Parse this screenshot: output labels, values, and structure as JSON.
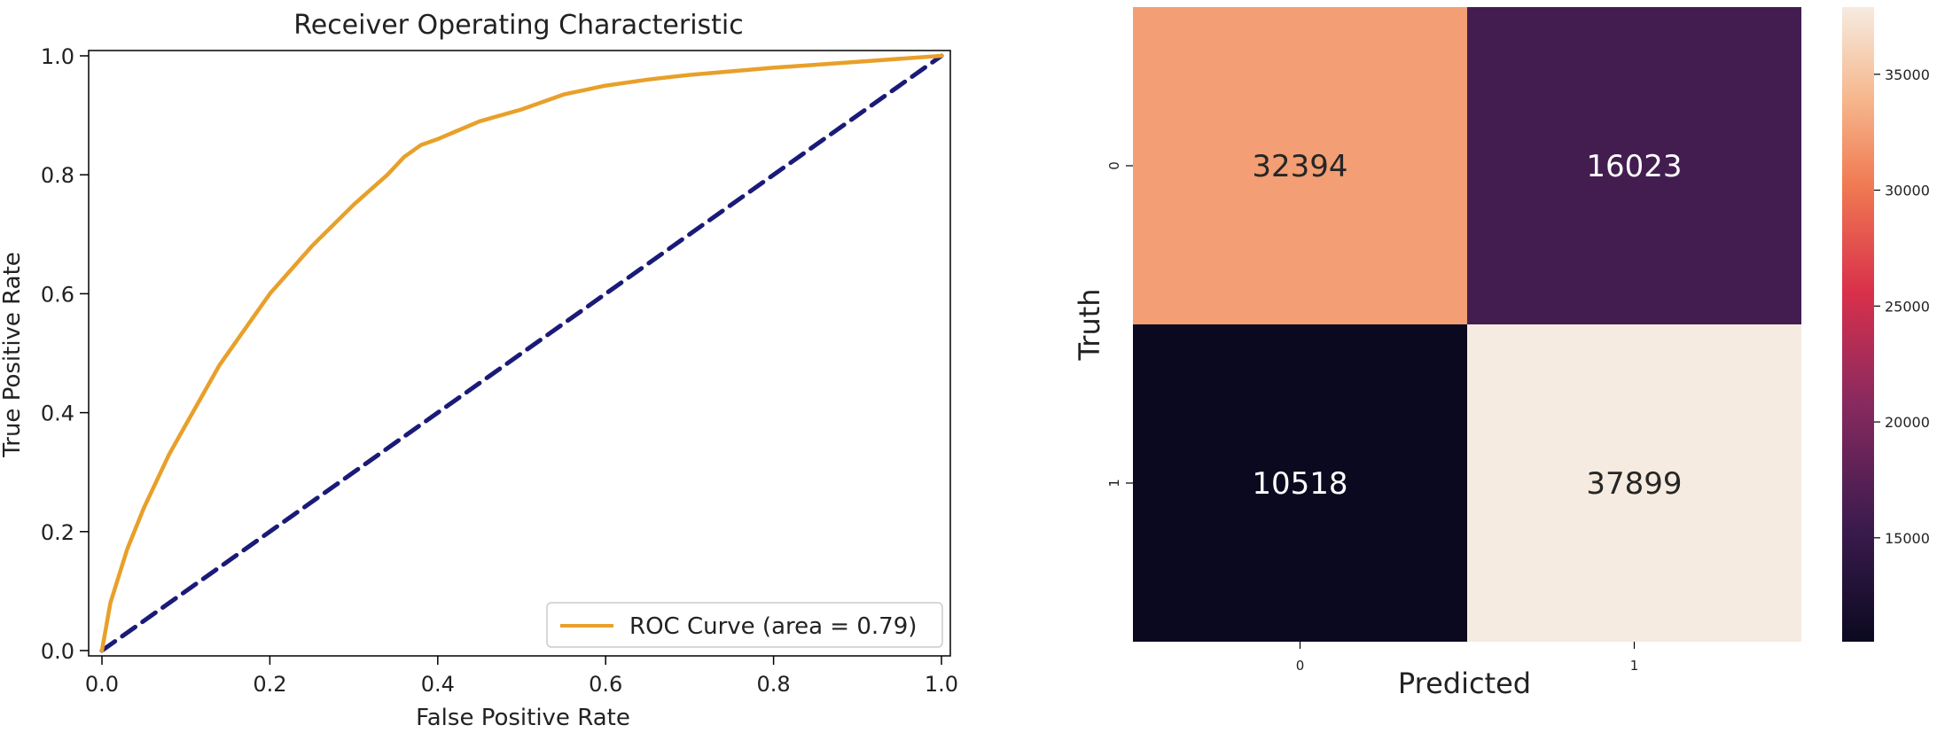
{
  "chart_data": [
    {
      "type": "line",
      "title": "Receiver Operating Characteristic",
      "xlabel": "False Positive Rate",
      "ylabel": "True Positive Rate",
      "xlim": [
        0,
        1
      ],
      "ylim": [
        0,
        1
      ],
      "xticks": [
        "0.0",
        "0.2",
        "0.4",
        "0.6",
        "0.8",
        "1.0"
      ],
      "yticks": [
        "0.0",
        "0.2",
        "0.4",
        "0.6",
        "0.8",
        "1.0"
      ],
      "grid": false,
      "legend_position": "lower-right",
      "series": [
        {
          "name": "ROC Curve (area = 0.79)",
          "color": "#e8a02a",
          "style": "solid",
          "x": [
            0,
            0.01,
            0.03,
            0.05,
            0.08,
            0.1,
            0.14,
            0.18,
            0.2,
            0.25,
            0.3,
            0.34,
            0.36,
            0.38,
            0.4,
            0.45,
            0.5,
            0.55,
            0.6,
            0.65,
            0.7,
            0.8,
            0.9,
            1.0
          ],
          "y": [
            0,
            0.08,
            0.17,
            0.24,
            0.33,
            0.38,
            0.48,
            0.56,
            0.6,
            0.68,
            0.75,
            0.8,
            0.83,
            0.85,
            0.86,
            0.89,
            0.91,
            0.935,
            0.95,
            0.96,
            0.968,
            0.98,
            0.99,
            1.0
          ]
        },
        {
          "name": "",
          "color": "#1a1a78",
          "style": "dashed",
          "x": [
            0,
            1
          ],
          "y": [
            0,
            1
          ]
        }
      ]
    },
    {
      "type": "heatmap",
      "xlabel": "Predicted",
      "ylabel": "Truth",
      "x_categories": [
        "0",
        "1"
      ],
      "y_categories": [
        "0",
        "1"
      ],
      "values": [
        [
          32394,
          16023
        ],
        [
          10518,
          37899
        ]
      ],
      "colorbar_ticks": [
        "15000",
        "20000",
        "25000",
        "30000",
        "35000"
      ],
      "colorbar_range": [
        10518,
        37899
      ],
      "colormap": "rocket"
    }
  ]
}
